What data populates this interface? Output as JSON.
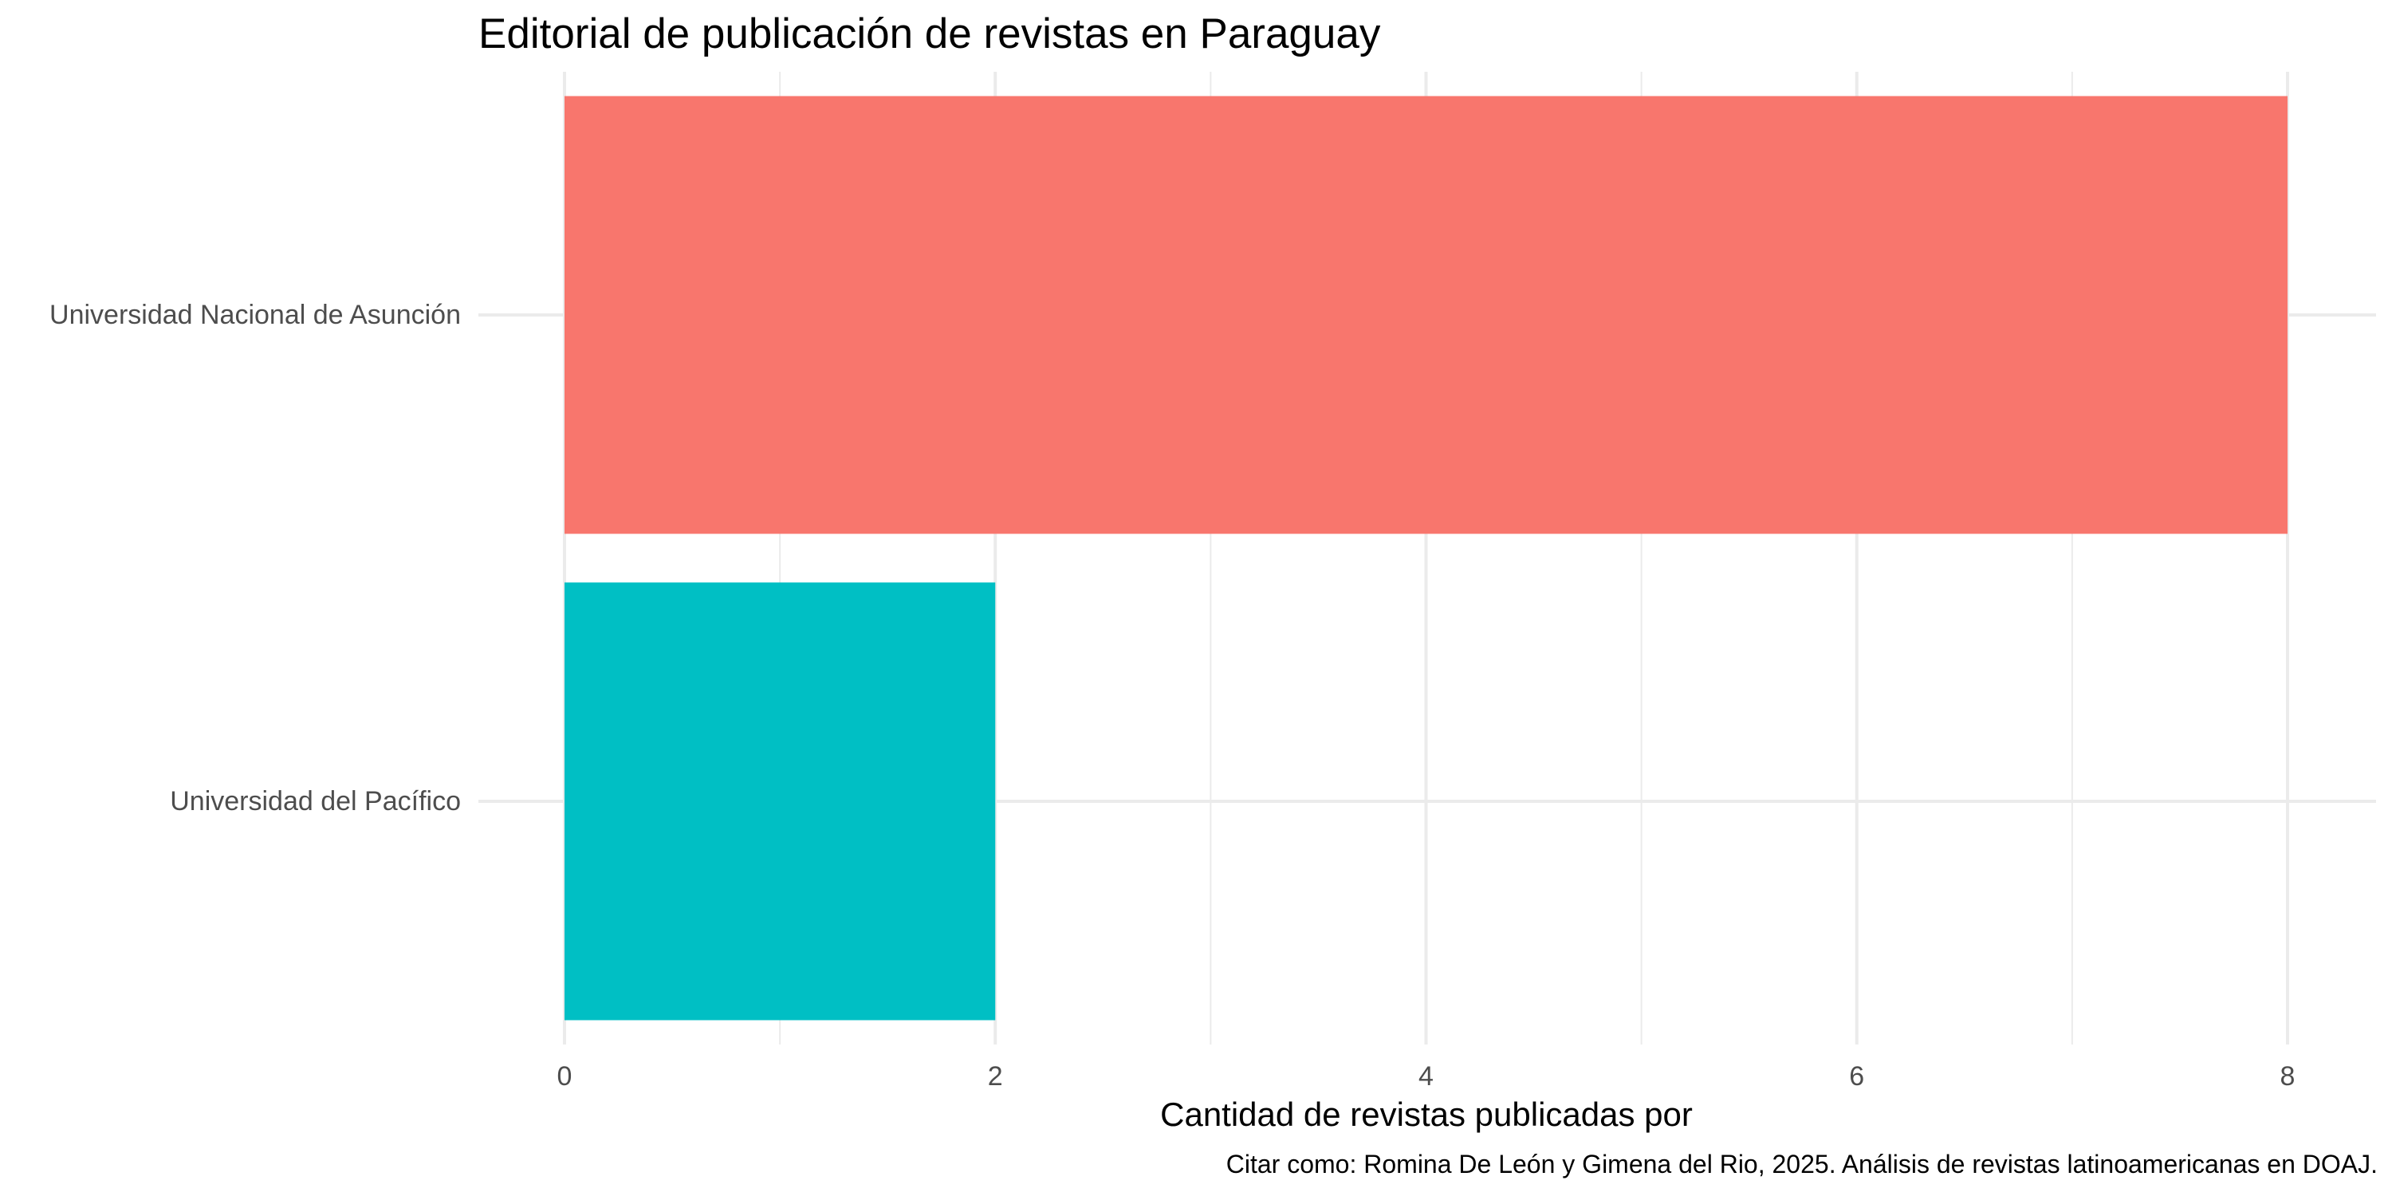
{
  "chart_data": {
    "type": "bar",
    "orientation": "horizontal",
    "title": "Editorial de publicación de revistas en Paraguay",
    "xlabel": "Cantidad de revistas publicadas por",
    "ylabel": "",
    "caption": "Citar como: Romina De León y Gimena del Rio, 2025. Análisis de revistas latinoamericanas en DOAJ.",
    "categories": [
      "Universidad Nacional de Asunción",
      "Universidad del Pacífico"
    ],
    "values": [
      8,
      2
    ],
    "colors": [
      "#F8766D",
      "#00BFC4"
    ],
    "xlim": [
      0,
      8
    ],
    "x_ticks": [
      0,
      2,
      4,
      6,
      8
    ],
    "x_tick_labels": [
      "0",
      "2",
      "4",
      "6",
      "8"
    ],
    "grid": true,
    "legend": "none"
  }
}
